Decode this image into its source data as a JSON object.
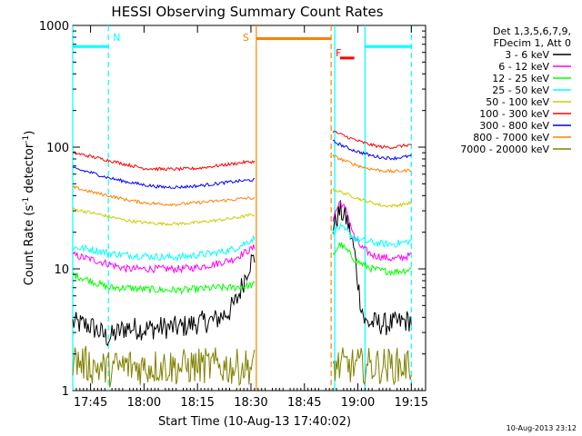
{
  "chart_data": {
    "type": "line",
    "title": "HESSI Observing Summary Count Rates",
    "xlabel": "Start Time (10-Aug-13 17:40:02)",
    "ylabel_main": "Count Rate (s",
    "ylabel_sup1": "-1",
    "ylabel_mid": " detector",
    "ylabel_sup2": "-1",
    "ylabel_end": ")",
    "y_scale": "log",
    "ylim": [
      1,
      1000
    ],
    "x_unit": "minutes after 17:40:02",
    "xlim": [
      0,
      99
    ],
    "x_ticks": [
      {
        "label": "17:45",
        "x": 5
      },
      {
        "label": "18:00",
        "x": 20
      },
      {
        "label": "18:15",
        "x": 35
      },
      {
        "label": "18:30",
        "x": 50
      },
      {
        "label": "18:45",
        "x": 65
      },
      {
        "label": "19:00",
        "x": 80
      },
      {
        "label": "19:15",
        "x": 95
      }
    ],
    "y_ticks": [
      {
        "label": "1",
        "y": 1
      },
      {
        "label": "10",
        "y": 10
      },
      {
        "label": "100",
        "y": 100
      },
      {
        "label": "1000",
        "y": 1000
      }
    ],
    "legend_position": "right",
    "legend_header": [
      "Det 1,3,5,6,7,9,",
      "FDecim 1, Att 0"
    ],
    "gaps": [
      [
        51.5,
        72.5
      ]
    ],
    "series": [
      {
        "name": "3 - 6 keV",
        "color": "#000000",
        "points": [
          [
            0,
            3.6
          ],
          [
            5,
            3.4
          ],
          [
            10,
            2.7
          ],
          [
            15,
            3.3
          ],
          [
            20,
            3.2
          ],
          [
            25,
            3.3
          ],
          [
            30,
            3.3
          ],
          [
            35,
            3.6
          ],
          [
            40,
            3.8
          ],
          [
            44,
            4.5
          ],
          [
            46,
            5.5
          ],
          [
            48,
            8
          ],
          [
            49,
            10
          ],
          [
            50,
            11.5
          ],
          [
            51,
            12
          ],
          [
            73,
            22
          ],
          [
            75,
            30
          ],
          [
            77,
            25
          ],
          [
            79,
            14
          ],
          [
            80.5,
            6
          ],
          [
            82,
            3.6
          ],
          [
            85,
            3.6
          ],
          [
            88,
            3.5
          ],
          [
            91,
            3.6
          ],
          [
            93,
            3.7
          ],
          [
            95,
            3.8
          ]
        ]
      },
      {
        "name": "6 - 12 keV",
        "color": "#ff00ff",
        "points": [
          [
            0,
            13
          ],
          [
            5,
            12
          ],
          [
            10,
            11
          ],
          [
            15,
            10
          ],
          [
            20,
            10
          ],
          [
            25,
            10
          ],
          [
            30,
            10
          ],
          [
            35,
            10.3
          ],
          [
            40,
            11
          ],
          [
            45,
            12
          ],
          [
            48,
            13.5
          ],
          [
            51,
            15
          ],
          [
            73,
            26
          ],
          [
            75,
            36
          ],
          [
            77,
            29
          ],
          [
            79,
            18
          ],
          [
            81,
            15
          ],
          [
            84,
            13
          ],
          [
            87,
            12.5
          ],
          [
            90,
            12
          ],
          [
            93,
            12.5
          ],
          [
            95,
            13
          ]
        ]
      },
      {
        "name": "12 - 25 keV",
        "color": "#00ff00",
        "points": [
          [
            0,
            9
          ],
          [
            5,
            8
          ],
          [
            10,
            7
          ],
          [
            15,
            7
          ],
          [
            20,
            6.8
          ],
          [
            25,
            6.7
          ],
          [
            30,
            6.7
          ],
          [
            35,
            6.8
          ],
          [
            40,
            7
          ],
          [
            45,
            7
          ],
          [
            48,
            7.2
          ],
          [
            51,
            7.4
          ],
          [
            73,
            13
          ],
          [
            75,
            16
          ],
          [
            77,
            14
          ],
          [
            79,
            12
          ],
          [
            81,
            11
          ],
          [
            84,
            10
          ],
          [
            87,
            9.6
          ],
          [
            90,
            9.5
          ],
          [
            93,
            9.7
          ],
          [
            95,
            10
          ]
        ]
      },
      {
        "name": "25 - 50 keV",
        "color": "#00ffff",
        "points": [
          [
            0,
            15
          ],
          [
            5,
            14.5
          ],
          [
            10,
            13.5
          ],
          [
            15,
            13
          ],
          [
            20,
            12.8
          ],
          [
            25,
            12.5
          ],
          [
            30,
            12.5
          ],
          [
            35,
            13
          ],
          [
            40,
            13.5
          ],
          [
            45,
            14.5
          ],
          [
            48,
            16
          ],
          [
            51,
            18
          ],
          [
            73,
            20
          ],
          [
            75,
            22
          ],
          [
            77,
            20
          ],
          [
            79,
            18
          ],
          [
            81,
            17
          ],
          [
            84,
            16.5
          ],
          [
            87,
            16
          ],
          [
            90,
            16
          ],
          [
            93,
            16.5
          ],
          [
            95,
            17
          ]
        ]
      },
      {
        "name": "50 - 100 keV",
        "color": "#cccc00",
        "points": [
          [
            0,
            31
          ],
          [
            5,
            29
          ],
          [
            10,
            27
          ],
          [
            15,
            25
          ],
          [
            20,
            24
          ],
          [
            25,
            23.5
          ],
          [
            30,
            23.5
          ],
          [
            35,
            24
          ],
          [
            40,
            25
          ],
          [
            45,
            26
          ],
          [
            48,
            27
          ],
          [
            51,
            28
          ],
          [
            73,
            45
          ],
          [
            75,
            43
          ],
          [
            78,
            40
          ],
          [
            81,
            37
          ],
          [
            84,
            35
          ],
          [
            87,
            33
          ],
          [
            90,
            33
          ],
          [
            93,
            34
          ],
          [
            95,
            35
          ]
        ]
      },
      {
        "name": "100 - 300 keV",
        "color": "#ff0000",
        "points": [
          [
            0,
            90
          ],
          [
            5,
            84
          ],
          [
            10,
            78
          ],
          [
            15,
            72
          ],
          [
            20,
            67
          ],
          [
            25,
            66
          ],
          [
            30,
            66
          ],
          [
            35,
            67
          ],
          [
            40,
            70
          ],
          [
            45,
            73
          ],
          [
            48,
            75
          ],
          [
            51,
            76
          ],
          [
            73,
            135
          ],
          [
            75,
            128
          ],
          [
            78,
            118
          ],
          [
            81,
            110
          ],
          [
            84,
            104
          ],
          [
            87,
            100
          ],
          [
            90,
            100
          ],
          [
            93,
            103
          ],
          [
            95,
            105
          ]
        ]
      },
      {
        "name": "300 - 800 keV",
        "color": "#0000ff",
        "points": [
          [
            0,
            67
          ],
          [
            5,
            62
          ],
          [
            10,
            56
          ],
          [
            15,
            52
          ],
          [
            20,
            49
          ],
          [
            25,
            47
          ],
          [
            30,
            47
          ],
          [
            35,
            48
          ],
          [
            40,
            50
          ],
          [
            45,
            52
          ],
          [
            48,
            53
          ],
          [
            51,
            54
          ],
          [
            73,
            112
          ],
          [
            75,
            105
          ],
          [
            78,
            96
          ],
          [
            81,
            90
          ],
          [
            84,
            85
          ],
          [
            87,
            82
          ],
          [
            90,
            81
          ],
          [
            93,
            83
          ],
          [
            95,
            85
          ]
        ]
      },
      {
        "name": "800 - 7000 keV",
        "color": "#ff8000",
        "points": [
          [
            0,
            47
          ],
          [
            5,
            43
          ],
          [
            10,
            40
          ],
          [
            15,
            37
          ],
          [
            20,
            35
          ],
          [
            25,
            34
          ],
          [
            30,
            34
          ],
          [
            35,
            35
          ],
          [
            40,
            36
          ],
          [
            45,
            37
          ],
          [
            48,
            38
          ],
          [
            51,
            38
          ],
          [
            73,
            85
          ],
          [
            75,
            80
          ],
          [
            78,
            74
          ],
          [
            81,
            69
          ],
          [
            84,
            66
          ],
          [
            87,
            64
          ],
          [
            90,
            63
          ],
          [
            93,
            64
          ],
          [
            95,
            65
          ]
        ]
      },
      {
        "name": "7000 - 20000 keV",
        "color": "#808000",
        "points": [
          [
            0,
            1.8
          ],
          [
            5,
            1.6
          ],
          [
            10,
            1.5
          ],
          [
            15,
            1.6
          ],
          [
            20,
            1.55
          ],
          [
            25,
            1.6
          ],
          [
            30,
            1.55
          ],
          [
            35,
            1.6
          ],
          [
            40,
            1.6
          ],
          [
            45,
            1.55
          ],
          [
            51,
            1.6
          ],
          [
            73,
            1.6
          ],
          [
            78,
            1.6
          ],
          [
            83,
            1.6
          ],
          [
            88,
            1.6
          ],
          [
            93,
            1.6
          ],
          [
            95,
            1.6
          ]
        ]
      }
    ],
    "annotations": [
      {
        "label": "N",
        "x": 10,
        "color": "#00ffff"
      },
      {
        "label": "S",
        "x": 51.5,
        "color": "#ff8000"
      },
      {
        "label": "F",
        "x": 72.5,
        "color": "#ff0000"
      }
    ],
    "bars": [
      {
        "x0": 0,
        "x1": 10,
        "y": 670,
        "color": "#00ffff"
      },
      {
        "x0": 51.5,
        "x1": 72.5,
        "y": 780,
        "color": "#ff8000"
      },
      {
        "x0": 75,
        "x1": 79,
        "y": 540,
        "color": "#ff0000"
      },
      {
        "x0": 82,
        "x1": 95,
        "y": 670,
        "color": "#00ffff"
      }
    ],
    "vlines": [
      {
        "x": 0,
        "color": "#00ffff",
        "style": "solid"
      },
      {
        "x": 10,
        "color": "#00ffff",
        "style": "dashed"
      },
      {
        "x": 51.5,
        "color": "#ff8000",
        "style": "solid"
      },
      {
        "x": 72.5,
        "color": "#ff8000",
        "style": "dashed"
      },
      {
        "x": 73.5,
        "color": "#00ffff",
        "style": "solid"
      },
      {
        "x": 82,
        "color": "#00ffff",
        "style": "solid"
      },
      {
        "x": 95,
        "color": "#00ffff",
        "style": "dashed"
      }
    ],
    "grid": false
  },
  "timestamp": "10-Aug-2013 23:12"
}
